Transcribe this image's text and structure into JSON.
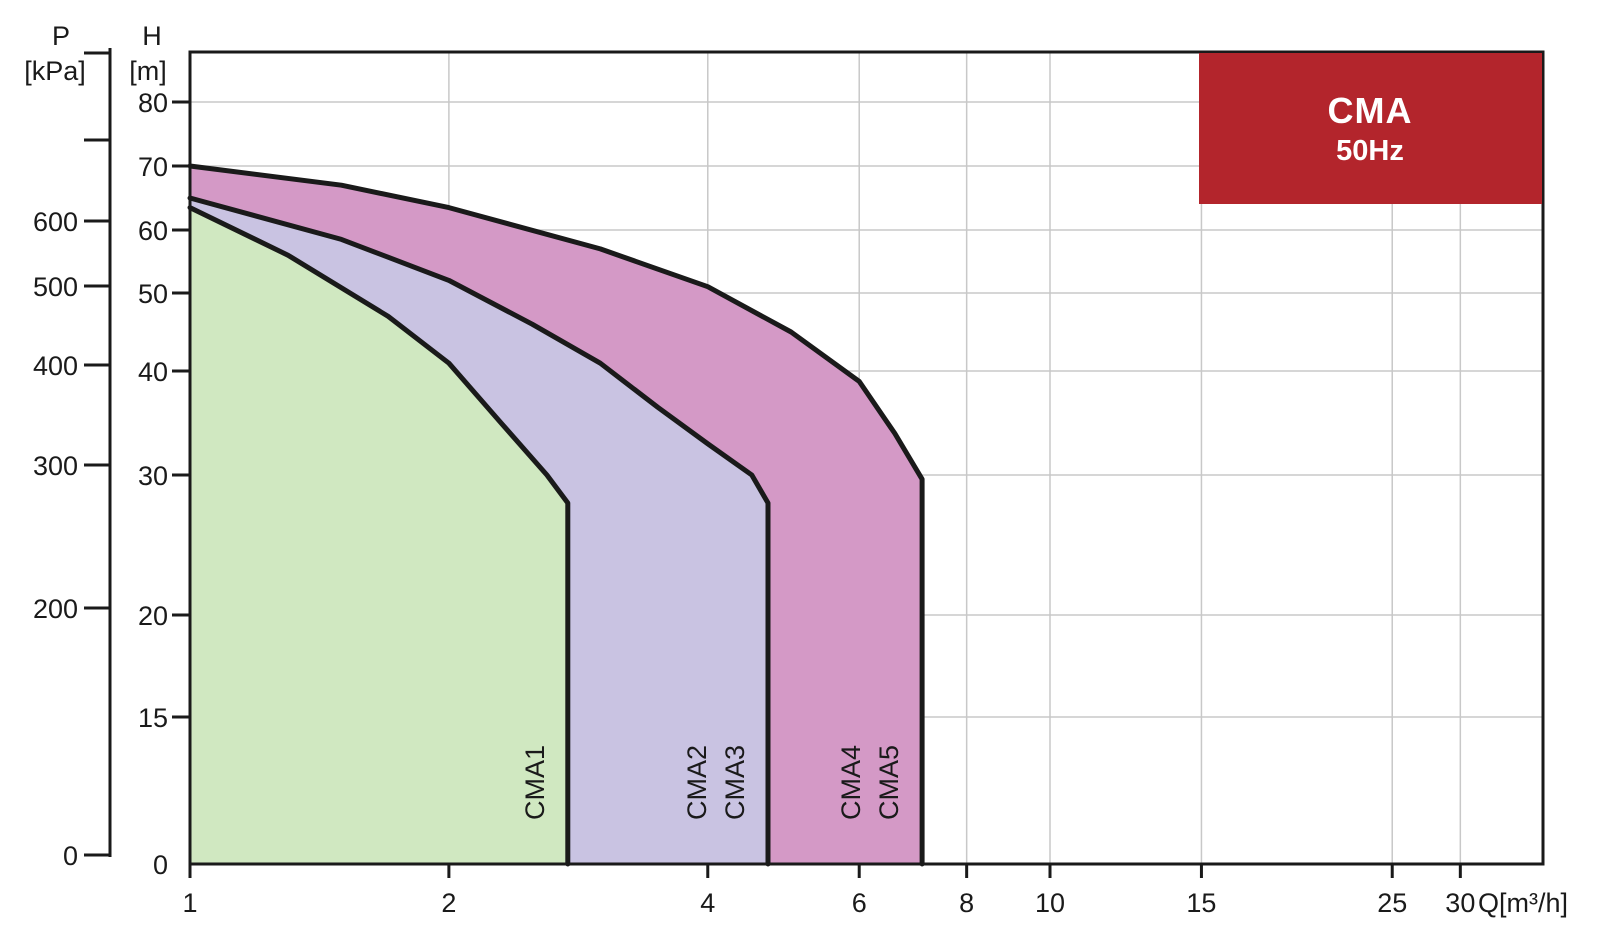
{
  "badge": {
    "title": "CMA",
    "subtitle": "50Hz",
    "color": "#b3252c"
  },
  "axes": {
    "p_label": "P",
    "p_unit": "[kPa]",
    "h_label": "H",
    "h_unit": "[m]",
    "q_label": "Q[m³/h]"
  },
  "chart_data": {
    "type": "area",
    "x_scale": "log",
    "xlim": [
      1,
      35
    ],
    "x_ticks": [
      {
        "value": 1,
        "label": "1"
      },
      {
        "value": 2,
        "label": "2"
      },
      {
        "value": 4,
        "label": "4"
      },
      {
        "value": 6,
        "label": "6"
      },
      {
        "value": 8,
        "label": "8"
      },
      {
        "value": 10,
        "label": "10"
      },
      {
        "value": 15,
        "label": "15"
      },
      {
        "value": 25,
        "label": "25"
      },
      {
        "value": 30,
        "label": "30"
      }
    ],
    "h_ticks": [
      {
        "value": 0,
        "label": "0"
      },
      {
        "value": 15,
        "label": "15"
      },
      {
        "value": 20,
        "label": "20"
      },
      {
        "value": 30,
        "label": "30"
      },
      {
        "value": 40,
        "label": "40"
      },
      {
        "value": 50,
        "label": "50"
      },
      {
        "value": 60,
        "label": "60"
      },
      {
        "value": 70,
        "label": "70"
      },
      {
        "value": 80,
        "label": "80"
      }
    ],
    "p_ticks": [
      {
        "value": 0,
        "label": "0"
      },
      {
        "value": 200,
        "label": "200"
      },
      {
        "value": 300,
        "label": "300"
      },
      {
        "value": 400,
        "label": "400"
      },
      {
        "value": 500,
        "label": "500"
      },
      {
        "value": 600,
        "label": "600"
      },
      {
        "value": 700,
        "label": ""
      },
      {
        "value": 800,
        "label": ""
      }
    ],
    "grid": true,
    "series": [
      {
        "name": "CMA1",
        "color": "#d0e8c1",
        "curve": [
          [
            1,
            63.5
          ],
          [
            1.3,
            56
          ],
          [
            1.7,
            47
          ],
          [
            2,
            41
          ],
          [
            2.3,
            35
          ],
          [
            2.6,
            30
          ],
          [
            2.75,
            28
          ]
        ],
        "q_max": 2.75
      },
      {
        "name": "CMA2 CMA3",
        "color": "#c9c3e2",
        "curve": [
          [
            1,
            65
          ],
          [
            1.5,
            58.5
          ],
          [
            2,
            52
          ],
          [
            2.5,
            46
          ],
          [
            3,
            41
          ],
          [
            3.5,
            36.5
          ],
          [
            4,
            33
          ],
          [
            4.5,
            30
          ],
          [
            4.7,
            28
          ]
        ],
        "q_max": 4.7
      },
      {
        "name": "CMA4 CMA5",
        "color": "#d499c6",
        "curve": [
          [
            1,
            70
          ],
          [
            1.5,
            67
          ],
          [
            2,
            63.5
          ],
          [
            3,
            57
          ],
          [
            4,
            51
          ],
          [
            5,
            45
          ],
          [
            6,
            39
          ],
          [
            6.6,
            34
          ],
          [
            7.1,
            29.7
          ]
        ],
        "q_max": 7.1
      }
    ]
  }
}
